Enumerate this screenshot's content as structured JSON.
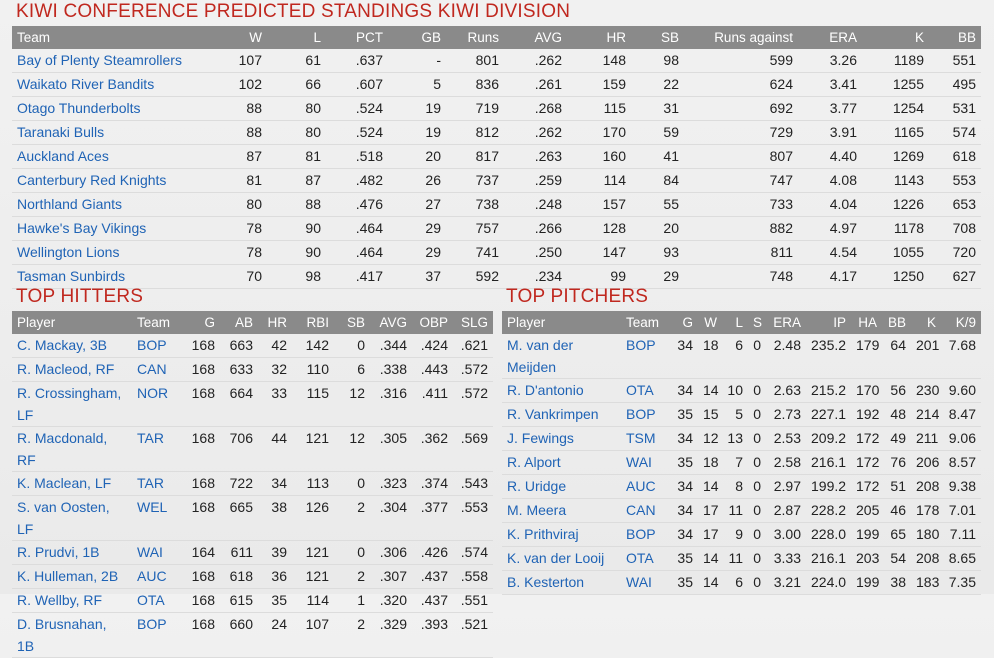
{
  "standings": {
    "title": "KIWI CONFERENCE PREDICTED STANDINGS KIWI DIVISION",
    "columns": [
      "Team",
      "W",
      "L",
      "PCT",
      "GB",
      "Runs",
      "AVG",
      "HR",
      "SB",
      "Runs against",
      "ERA",
      "K",
      "BB"
    ],
    "rows": [
      [
        "Bay of Plenty Steamrollers",
        "107",
        "61",
        ".637",
        "-",
        "801",
        ".262",
        "148",
        "98",
        "599",
        "3.26",
        "1189",
        "551"
      ],
      [
        "Waikato River Bandits",
        "102",
        "66",
        ".607",
        "5",
        "836",
        ".261",
        "159",
        "22",
        "624",
        "3.41",
        "1255",
        "495"
      ],
      [
        "Otago Thunderbolts",
        "88",
        "80",
        ".524",
        "19",
        "719",
        ".268",
        "115",
        "31",
        "692",
        "3.77",
        "1254",
        "531"
      ],
      [
        "Taranaki Bulls",
        "88",
        "80",
        ".524",
        "19",
        "812",
        ".262",
        "170",
        "59",
        "729",
        "3.91",
        "1165",
        "574"
      ],
      [
        "Auckland Aces",
        "87",
        "81",
        ".518",
        "20",
        "817",
        ".263",
        "160",
        "41",
        "807",
        "4.40",
        "1269",
        "618"
      ],
      [
        "Canterbury Red Knights",
        "81",
        "87",
        ".482",
        "26",
        "737",
        ".259",
        "114",
        "84",
        "747",
        "4.08",
        "1143",
        "553"
      ],
      [
        "Northland Giants",
        "80",
        "88",
        ".476",
        "27",
        "738",
        ".248",
        "157",
        "55",
        "733",
        "4.04",
        "1226",
        "653"
      ],
      [
        "Hawke's Bay Vikings",
        "78",
        "90",
        ".464",
        "29",
        "757",
        ".266",
        "128",
        "20",
        "882",
        "4.97",
        "1178",
        "708"
      ],
      [
        "Wellington Lions",
        "78",
        "90",
        ".464",
        "29",
        "741",
        ".250",
        "147",
        "93",
        "811",
        "4.54",
        "1055",
        "720"
      ],
      [
        "Tasman Sunbirds",
        "70",
        "98",
        ".417",
        "37",
        "592",
        ".234",
        "99",
        "29",
        "748",
        "4.17",
        "1250",
        "627"
      ]
    ]
  },
  "hitters": {
    "title": "TOP HITTERS",
    "columns": [
      "Player",
      "Team",
      "G",
      "AB",
      "HR",
      "RBI",
      "SB",
      "AVG",
      "OBP",
      "SLG"
    ],
    "rows": [
      [
        "C. Mackay, 3B",
        "BOP",
        "168",
        "663",
        "42",
        "142",
        "0",
        ".344",
        ".424",
        ".621"
      ],
      [
        "R. Macleod, RF",
        "CAN",
        "168",
        "633",
        "32",
        "110",
        "6",
        ".338",
        ".443",
        ".572"
      ],
      [
        "R. Crossingham, LF",
        "NOR",
        "168",
        "664",
        "33",
        "115",
        "12",
        ".316",
        ".411",
        ".572"
      ],
      [
        "R. Macdonald, RF",
        "TAR",
        "168",
        "706",
        "44",
        "121",
        "12",
        ".305",
        ".362",
        ".569"
      ],
      [
        "K. Maclean, LF",
        "TAR",
        "168",
        "722",
        "34",
        "113",
        "0",
        ".323",
        ".374",
        ".543"
      ],
      [
        "S. van Oosten, LF",
        "WEL",
        "168",
        "665",
        "38",
        "126",
        "2",
        ".304",
        ".377",
        ".553"
      ],
      [
        "R. Prudvi, 1B",
        "WAI",
        "164",
        "611",
        "39",
        "121",
        "0",
        ".306",
        ".426",
        ".574"
      ],
      [
        "K. Hulleman, 2B",
        "AUC",
        "168",
        "618",
        "36",
        "121",
        "2",
        ".307",
        ".437",
        ".558"
      ],
      [
        "R. Wellby, RF",
        "OTA",
        "168",
        "615",
        "35",
        "114",
        "1",
        ".320",
        ".437",
        ".551"
      ],
      [
        "D. Brusnahan, 1B",
        "BOP",
        "168",
        "660",
        "24",
        "107",
        "2",
        ".329",
        ".393",
        ".521"
      ]
    ]
  },
  "pitchers": {
    "title": "TOP PITCHERS",
    "columns": [
      "Player",
      "Team",
      "G",
      "W",
      "L",
      "S",
      "ERA",
      "IP",
      "HA",
      "BB",
      "K",
      "K/9"
    ],
    "rows": [
      [
        "M. van der Meijden",
        "BOP",
        "34",
        "18",
        "6",
        "0",
        "2.48",
        "235.2",
        "179",
        "64",
        "201",
        "7.68"
      ],
      [
        "R. D'antonio",
        "OTA",
        "34",
        "14",
        "10",
        "0",
        "2.63",
        "215.2",
        "170",
        "56",
        "230",
        "9.60"
      ],
      [
        "R. Vankrimpen",
        "BOP",
        "35",
        "15",
        "5",
        "0",
        "2.73",
        "227.1",
        "192",
        "48",
        "214",
        "8.47"
      ],
      [
        "J. Fewings",
        "TSM",
        "34",
        "12",
        "13",
        "0",
        "2.53",
        "209.2",
        "172",
        "49",
        "211",
        "9.06"
      ],
      [
        "R. Alport",
        "WAI",
        "35",
        "18",
        "7",
        "0",
        "2.58",
        "216.1",
        "172",
        "76",
        "206",
        "8.57"
      ],
      [
        "R. Uridge",
        "AUC",
        "34",
        "14",
        "8",
        "0",
        "2.97",
        "199.2",
        "172",
        "51",
        "208",
        "9.38"
      ],
      [
        "M. Meera",
        "CAN",
        "34",
        "17",
        "11",
        "0",
        "2.87",
        "228.2",
        "205",
        "46",
        "178",
        "7.01"
      ],
      [
        "K. Prithviraj",
        "BOP",
        "34",
        "17",
        "9",
        "0",
        "3.00",
        "228.0",
        "199",
        "65",
        "180",
        "7.11"
      ],
      [
        "K. van der Looij",
        "OTA",
        "35",
        "14",
        "11",
        "0",
        "3.33",
        "216.1",
        "203",
        "54",
        "208",
        "8.65"
      ],
      [
        "B. Kesterton",
        "WAI",
        "35",
        "14",
        "6",
        "0",
        "3.21",
        "224.0",
        "199",
        "38",
        "183",
        "7.35"
      ]
    ]
  }
}
